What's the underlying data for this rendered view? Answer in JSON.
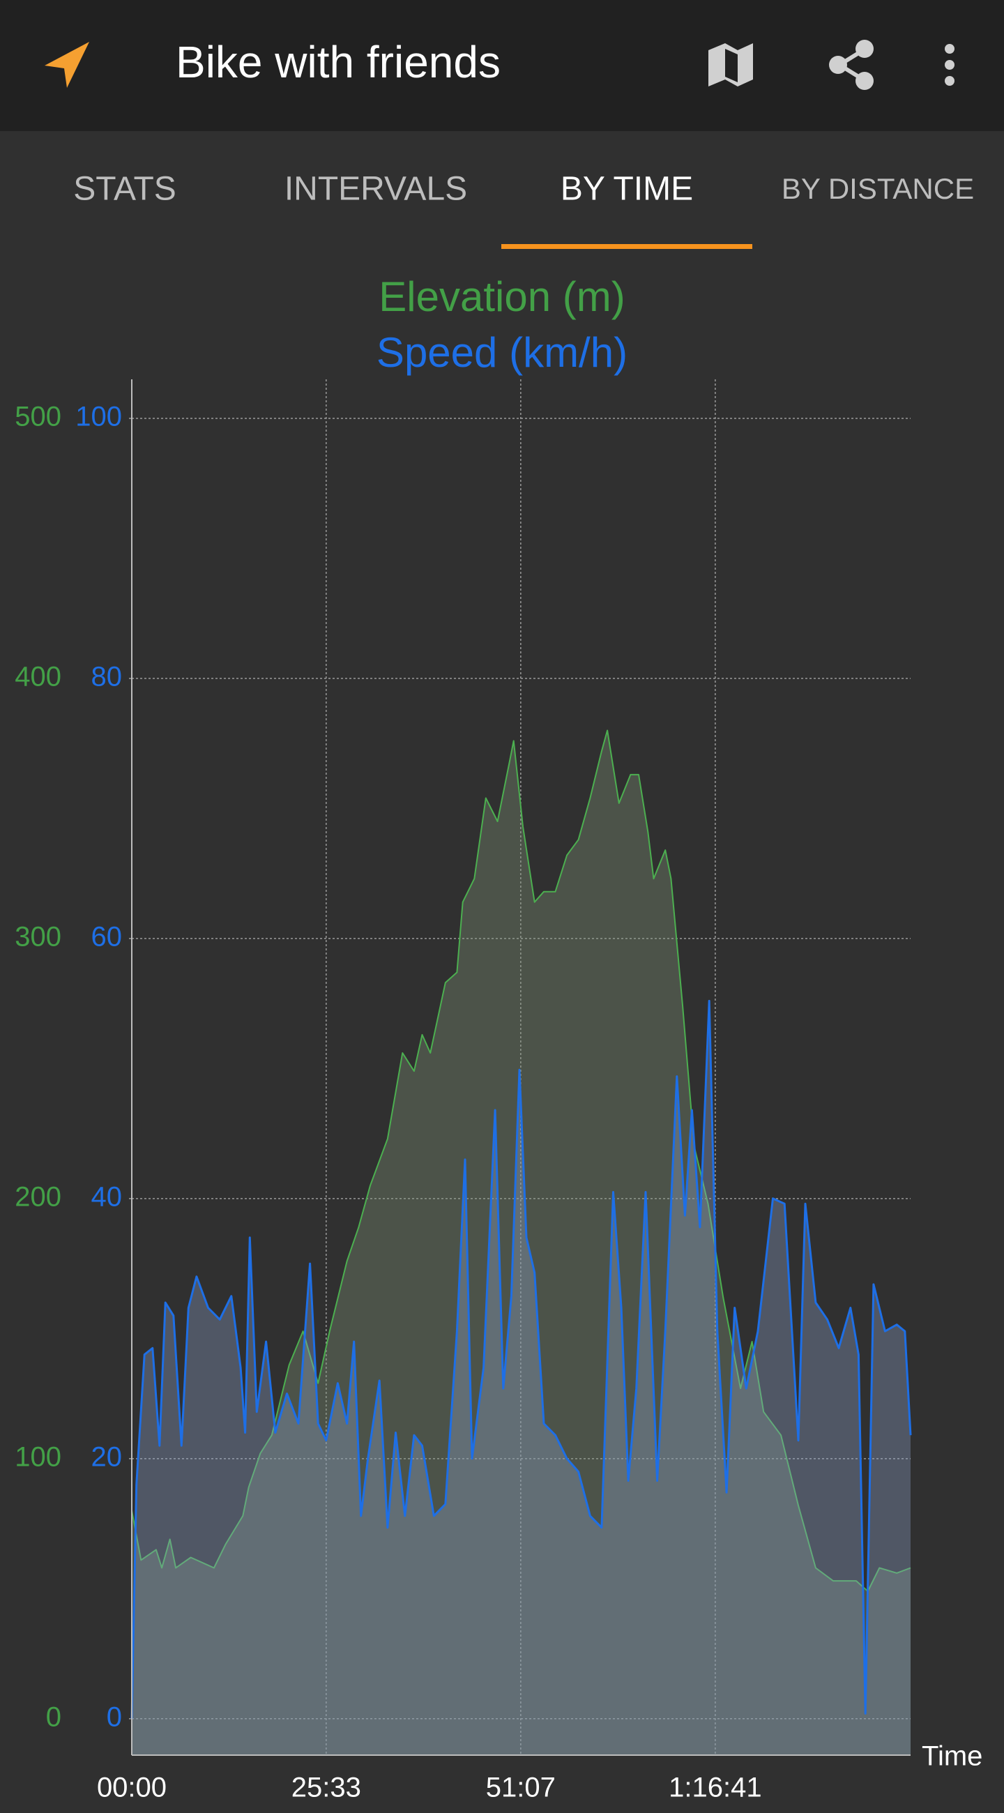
{
  "app_bar": {
    "title": "Bike with friends"
  },
  "tabs": {
    "items": [
      "STATS",
      "INTERVALS",
      "BY TIME",
      "BY DISTANCE"
    ],
    "selected": 2
  },
  "chart_data": {
    "type": "area",
    "titles": [
      {
        "text": "Elevation (m)",
        "color": "#43a047"
      },
      {
        "text": "Speed (km/h)",
        "color": "#1e6fe6"
      }
    ],
    "x_label": "Time",
    "xlim": [
      0,
      6141
    ],
    "xticks": [
      {
        "value": 0,
        "label": "00:00"
      },
      {
        "value": 1533,
        "label": "25:33"
      },
      {
        "value": 3067,
        "label": "51:07"
      },
      {
        "value": 4601,
        "label": "1:16:41"
      }
    ],
    "ylim": [
      -14,
      515
    ],
    "yticks": [
      0,
      100,
      200,
      300,
      400,
      500
    ],
    "y2lim": [
      -2.8,
      103
    ],
    "y2ticks": [
      0,
      20,
      40,
      60,
      80,
      100
    ],
    "grid": true,
    "series": [
      {
        "name": "Elevation (m)",
        "color": "#4caf50",
        "axis": "y",
        "x": [
          0,
          73,
          192,
          237,
          301,
          347,
          465,
          602,
          648,
          739,
          876,
          922,
          1013,
          1104,
          1241,
          1350,
          1469,
          1560,
          1697,
          1789,
          1880,
          2017,
          2135,
          2226,
          2290,
          2354,
          2473,
          2564,
          2610,
          2701,
          2792,
          2884,
          2975,
          3011,
          3084,
          3176,
          3249,
          3340,
          3431,
          3522,
          3614,
          3705,
          3750,
          3842,
          3933,
          3997,
          4070,
          4115,
          4207,
          4252,
          4344,
          4435,
          4544,
          4663,
          4800,
          4891,
          4982,
          5119,
          5256,
          5393,
          5530,
          5712,
          5804,
          5895,
          6032,
          6141
        ],
        "values": [
          80,
          61,
          65,
          58,
          69,
          58,
          62,
          59,
          58,
          67,
          78,
          89,
          102,
          109,
          136,
          149,
          129,
          149,
          176,
          189,
          205,
          223,
          256,
          249,
          263,
          256,
          283,
          287,
          314,
          323,
          354,
          345,
          367,
          376,
          343,
          314,
          318,
          318,
          332,
          338,
          354,
          372,
          380,
          352,
          363,
          363,
          341,
          323,
          334,
          323,
          274,
          220,
          198,
          162,
          127,
          145,
          118,
          109,
          82,
          58,
          53,
          53,
          49,
          58,
          56,
          58
        ]
      },
      {
        "name": "Speed (km/h)",
        "color": "#1e6fe6",
        "axis": "y2",
        "x": [
          0,
          37,
          100,
          164,
          219,
          265,
          329,
          392,
          447,
          511,
          602,
          694,
          785,
          858,
          894,
          931,
          986,
          1059,
          1132,
          1223,
          1314,
          1405,
          1469,
          1533,
          1624,
          1697,
          1752,
          1807,
          1862,
          1953,
          2017,
          2081,
          2154,
          2226,
          2290,
          2382,
          2473,
          2564,
          2628,
          2683,
          2774,
          2865,
          2929,
          2993,
          3057,
          3112,
          3176,
          3249,
          3340,
          3431,
          3522,
          3614,
          3705,
          3796,
          3860,
          3915,
          3979,
          4052,
          4143,
          4207,
          4298,
          4362,
          4417,
          4480,
          4553,
          4617,
          4690,
          4754,
          4845,
          4937,
          5055,
          5147,
          5256,
          5311,
          5393,
          5484,
          5575,
          5667,
          5731,
          5785,
          5849,
          5940,
          6032,
          6096,
          6141
        ],
        "values": [
          0,
          18,
          28,
          28.5,
          21,
          32,
          31,
          21,
          31.6,
          34,
          31.6,
          30.7,
          32.5,
          27,
          22,
          37,
          23.6,
          29,
          22,
          25,
          22.7,
          35,
          22.7,
          21.4,
          25.8,
          22.7,
          29,
          15.6,
          20,
          26,
          14.7,
          22,
          15.6,
          21.8,
          21,
          15.6,
          16.5,
          29.8,
          43,
          20,
          27,
          46.8,
          25.4,
          32.5,
          49.9,
          37,
          34.3,
          22.7,
          21.8,
          20,
          19,
          15.6,
          14.7,
          40.5,
          31.6,
          18.3,
          25.4,
          40.5,
          18.3,
          29.8,
          49.4,
          38.7,
          46.8,
          37.8,
          55.2,
          29.8,
          17.4,
          31.6,
          25.4,
          29.8,
          40,
          39.6,
          21.4,
          39.6,
          32,
          30.7,
          28.5,
          31.6,
          28,
          0.4,
          33.4,
          29.8,
          30.3,
          29.8,
          21.8
        ]
      }
    ]
  }
}
